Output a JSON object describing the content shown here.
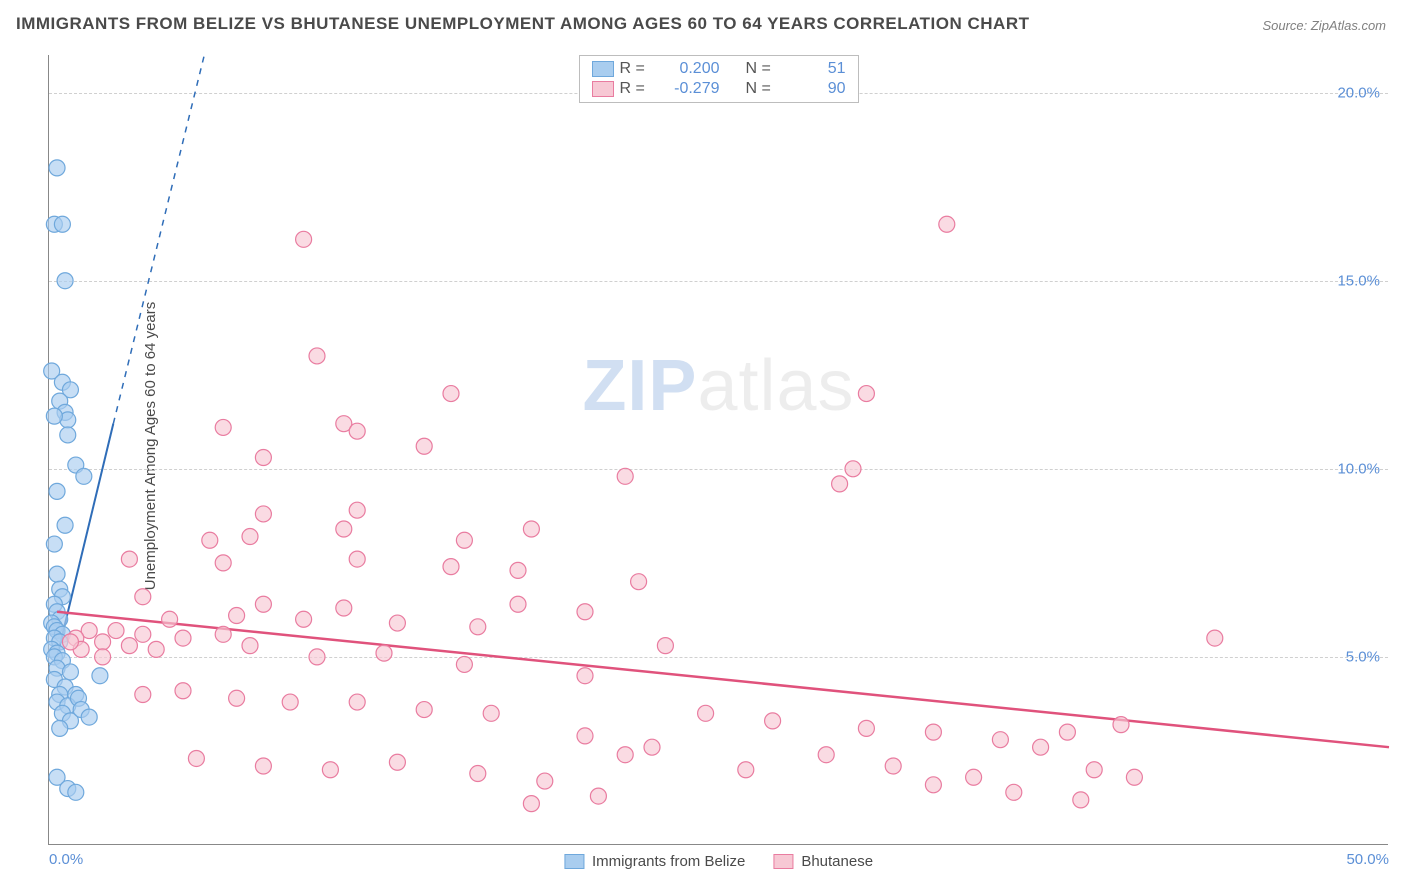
{
  "title": "IMMIGRANTS FROM BELIZE VS BHUTANESE UNEMPLOYMENT AMONG AGES 60 TO 64 YEARS CORRELATION CHART",
  "source": "Source: ZipAtlas.com",
  "ylabel": "Unemployment Among Ages 60 to 64 years",
  "watermark_zip": "ZIP",
  "watermark_atlas": "atlas",
  "chart": {
    "type": "scatter",
    "background_color": "#ffffff",
    "grid_color": "#d6d6d6",
    "xlim": [
      0,
      50
    ],
    "ylim": [
      0,
      21
    ],
    "xticks": [
      {
        "value": 0,
        "label": "0.0%"
      },
      {
        "value": 50,
        "label": "50.0%"
      }
    ],
    "yticks": [
      {
        "value": 5,
        "label": "5.0%"
      },
      {
        "value": 10,
        "label": "10.0%"
      },
      {
        "value": 15,
        "label": "15.0%"
      },
      {
        "value": 20,
        "label": "20.0%"
      }
    ],
    "series": [
      {
        "name": "Immigrants from Belize",
        "color_fill": "#a9cdef",
        "color_stroke": "#6fa8dc",
        "marker_radius": 8,
        "marker_opacity": 0.65,
        "R": "0.200",
        "N": "51",
        "trend": {
          "x1": 0.3,
          "y1": 5.0,
          "x2": 2.4,
          "y2": 11.2,
          "dash_ext_x": 10.3,
          "dash_ext_y": 34,
          "color": "#2f6db8",
          "width": 2
        },
        "points": [
          [
            0.3,
            18.0
          ],
          [
            0.2,
            16.5
          ],
          [
            0.5,
            16.5
          ],
          [
            0.6,
            15.0
          ],
          [
            0.1,
            12.6
          ],
          [
            0.5,
            12.3
          ],
          [
            0.8,
            12.1
          ],
          [
            0.4,
            11.8
          ],
          [
            0.6,
            11.5
          ],
          [
            0.7,
            11.3
          ],
          [
            0.2,
            11.4
          ],
          [
            0.7,
            10.9
          ],
          [
            1.0,
            10.1
          ],
          [
            1.3,
            9.8
          ],
          [
            0.3,
            9.4
          ],
          [
            0.6,
            8.5
          ],
          [
            0.2,
            8.0
          ],
          [
            0.3,
            7.2
          ],
          [
            0.4,
            6.8
          ],
          [
            0.5,
            6.6
          ],
          [
            0.2,
            6.4
          ],
          [
            0.3,
            6.2
          ],
          [
            0.4,
            6.0
          ],
          [
            0.1,
            5.9
          ],
          [
            0.2,
            5.8
          ],
          [
            0.3,
            5.7
          ],
          [
            0.5,
            5.6
          ],
          [
            0.2,
            5.5
          ],
          [
            0.4,
            5.4
          ],
          [
            0.1,
            5.2
          ],
          [
            0.3,
            5.1
          ],
          [
            0.2,
            5.0
          ],
          [
            0.5,
            4.9
          ],
          [
            0.3,
            4.7
          ],
          [
            0.8,
            4.6
          ],
          [
            0.2,
            4.4
          ],
          [
            0.6,
            4.2
          ],
          [
            0.4,
            4.0
          ],
          [
            1.0,
            4.0
          ],
          [
            0.3,
            3.8
          ],
          [
            0.7,
            3.7
          ],
          [
            1.1,
            3.9
          ],
          [
            0.5,
            3.5
          ],
          [
            0.8,
            3.3
          ],
          [
            0.4,
            3.1
          ],
          [
            1.2,
            3.6
          ],
          [
            1.5,
            3.4
          ],
          [
            0.3,
            1.8
          ],
          [
            0.7,
            1.5
          ],
          [
            1.0,
            1.4
          ],
          [
            1.9,
            4.5
          ]
        ]
      },
      {
        "name": "Bhutanese",
        "color_fill": "#f7c8d4",
        "color_stroke": "#e97ca0",
        "marker_radius": 8,
        "marker_opacity": 0.65,
        "R": "-0.279",
        "N": "90",
        "trend": {
          "x1": 0.3,
          "y1": 6.2,
          "x2": 50,
          "y2": 2.6,
          "color": "#e0527c",
          "width": 2.5
        },
        "points": [
          [
            9.5,
            16.1
          ],
          [
            33.5,
            16.5
          ],
          [
            10.0,
            13.0
          ],
          [
            15.0,
            12.0
          ],
          [
            30.5,
            12.0
          ],
          [
            6.5,
            11.1
          ],
          [
            11.0,
            11.2
          ],
          [
            11.5,
            11.0
          ],
          [
            14.0,
            10.6
          ],
          [
            8.0,
            10.3
          ],
          [
            30.0,
            10.0
          ],
          [
            21.5,
            9.8
          ],
          [
            29.5,
            9.6
          ],
          [
            8.0,
            8.8
          ],
          [
            11.5,
            8.9
          ],
          [
            11.0,
            8.4
          ],
          [
            6.0,
            8.1
          ],
          [
            7.5,
            8.2
          ],
          [
            18.0,
            8.4
          ],
          [
            15.5,
            8.1
          ],
          [
            3.0,
            7.6
          ],
          [
            6.5,
            7.5
          ],
          [
            11.5,
            7.6
          ],
          [
            15.0,
            7.4
          ],
          [
            17.5,
            7.3
          ],
          [
            22.0,
            7.0
          ],
          [
            3.5,
            6.6
          ],
          [
            8.0,
            6.4
          ],
          [
            11.0,
            6.3
          ],
          [
            17.5,
            6.4
          ],
          [
            20.0,
            6.2
          ],
          [
            4.5,
            6.0
          ],
          [
            7.0,
            6.1
          ],
          [
            9.5,
            6.0
          ],
          [
            13.0,
            5.9
          ],
          [
            16.0,
            5.8
          ],
          [
            1.5,
            5.7
          ],
          [
            2.5,
            5.7
          ],
          [
            3.5,
            5.6
          ],
          [
            5.0,
            5.5
          ],
          [
            6.5,
            5.6
          ],
          [
            1.0,
            5.5
          ],
          [
            2.0,
            5.4
          ],
          [
            3.0,
            5.3
          ],
          [
            4.0,
            5.2
          ],
          [
            7.5,
            5.3
          ],
          [
            10.0,
            5.0
          ],
          [
            12.5,
            5.1
          ],
          [
            15.5,
            4.8
          ],
          [
            20.0,
            4.5
          ],
          [
            23.0,
            5.3
          ],
          [
            43.5,
            5.5
          ],
          [
            3.5,
            4.0
          ],
          [
            5.0,
            4.1
          ],
          [
            7.0,
            3.9
          ],
          [
            9.0,
            3.8
          ],
          [
            11.5,
            3.8
          ],
          [
            14.0,
            3.6
          ],
          [
            16.5,
            3.5
          ],
          [
            20.0,
            2.9
          ],
          [
            22.5,
            2.6
          ],
          [
            24.5,
            3.5
          ],
          [
            27.0,
            3.3
          ],
          [
            29.0,
            2.4
          ],
          [
            30.5,
            3.1
          ],
          [
            33.0,
            3.0
          ],
          [
            35.5,
            2.8
          ],
          [
            38.0,
            3.0
          ],
          [
            40.0,
            3.2
          ],
          [
            5.5,
            2.3
          ],
          [
            8.0,
            2.1
          ],
          [
            10.5,
            2.0
          ],
          [
            13.0,
            2.2
          ],
          [
            16.0,
            1.9
          ],
          [
            18.5,
            1.7
          ],
          [
            21.5,
            2.4
          ],
          [
            26.0,
            2.0
          ],
          [
            31.5,
            2.1
          ],
          [
            34.5,
            1.8
          ],
          [
            37.0,
            2.6
          ],
          [
            39.0,
            2.0
          ],
          [
            40.5,
            1.8
          ],
          [
            18.0,
            1.1
          ],
          [
            20.5,
            1.3
          ],
          [
            33.0,
            1.6
          ],
          [
            36.0,
            1.4
          ],
          [
            38.5,
            1.2
          ],
          [
            2.0,
            5.0
          ],
          [
            1.2,
            5.2
          ],
          [
            0.8,
            5.4
          ]
        ]
      }
    ],
    "legend_top_labels": {
      "R": "R  =",
      "N": "N  ="
    },
    "legend_bottom": [
      {
        "name": "Immigrants from Belize",
        "fill": "#a9cdef",
        "stroke": "#6fa8dc"
      },
      {
        "name": "Bhutanese",
        "fill": "#f7c8d4",
        "stroke": "#e97ca0"
      }
    ]
  }
}
